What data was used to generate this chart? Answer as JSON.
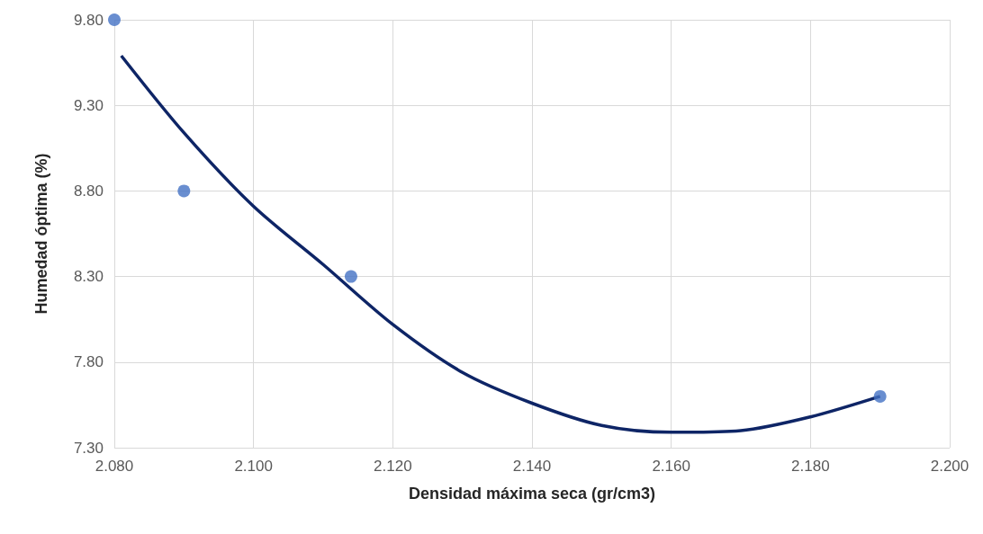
{
  "chart_data": {
    "type": "scatter",
    "xlabel": "Densidad máxima seca (gr/cm3)",
    "ylabel": "Humedad óptima (%)",
    "xlim": [
      2.08,
      2.2
    ],
    "ylim": [
      7.3,
      9.8
    ],
    "xticks": [
      {
        "value": 2.08,
        "label": "2.080"
      },
      {
        "value": 2.1,
        "label": "2.100"
      },
      {
        "value": 2.12,
        "label": "2.120"
      },
      {
        "value": 2.14,
        "label": "2.140"
      },
      {
        "value": 2.16,
        "label": "2.160"
      },
      {
        "value": 2.18,
        "label": "2.180"
      },
      {
        "value": 2.2,
        "label": "2.200"
      }
    ],
    "yticks": [
      {
        "value": 7.3,
        "label": "7.30"
      },
      {
        "value": 7.8,
        "label": "7.80"
      },
      {
        "value": 8.3,
        "label": "8.30"
      },
      {
        "value": 8.8,
        "label": "8.80"
      },
      {
        "value": 9.3,
        "label": "9.30"
      },
      {
        "value": 9.8,
        "label": "9.80"
      }
    ],
    "grid": true,
    "marker": "circle",
    "series": [
      {
        "color": "#4472c4",
        "x": [
          2.08,
          2.09,
          2.114,
          2.19
        ],
        "values": [
          9.8,
          8.8,
          8.3,
          7.6
        ]
      },
      {
        "type": "line",
        "color": "#0e2566",
        "marker": "none",
        "x": [
          2.081,
          2.09,
          2.1,
          2.11,
          2.12,
          2.13,
          2.14,
          2.15,
          2.16,
          2.17,
          2.18,
          2.19
        ],
        "values": [
          9.59,
          9.14,
          8.71,
          8.37,
          8.02,
          7.74,
          7.56,
          7.43,
          7.39,
          7.4,
          7.48,
          7.6
        ]
      }
    ]
  }
}
